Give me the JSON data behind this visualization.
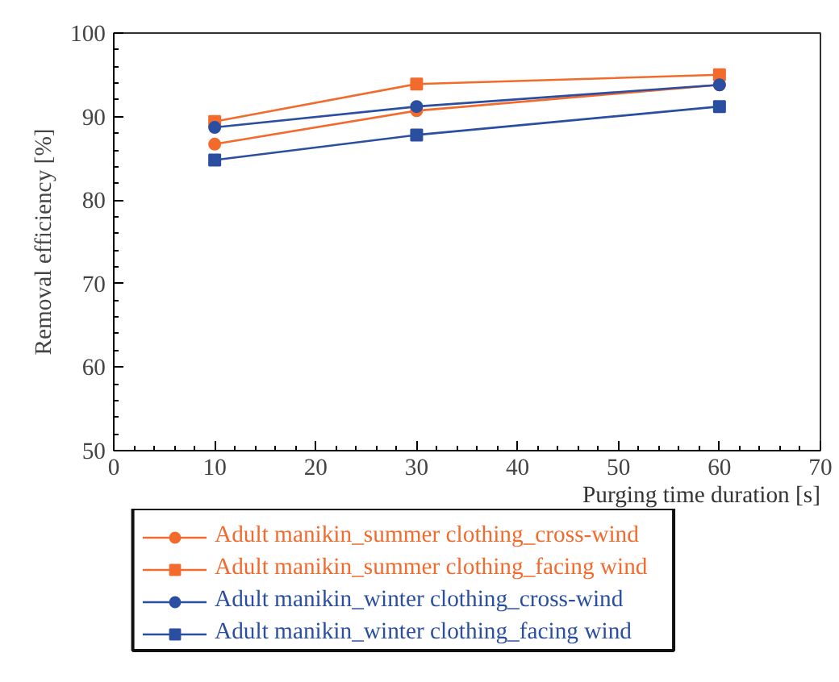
{
  "chart_data": {
    "type": "line",
    "xlabel": "Purging time duration [s]",
    "ylabel": "Removal efficiency [%]",
    "x": [
      10,
      30,
      60
    ],
    "xlim": [
      0,
      70
    ],
    "xticks": [
      0,
      10,
      20,
      30,
      40,
      50,
      60,
      70
    ],
    "ylim": [
      50,
      100
    ],
    "yticks": [
      50,
      60,
      70,
      80,
      90,
      100
    ],
    "grid": false,
    "legend": "bottom",
    "series": [
      {
        "name": "Adult manikin_summer clothing_cross-wind",
        "color": "#f26b2d",
        "marker": "circle",
        "values": [
          86.7,
          90.7,
          93.8
        ]
      },
      {
        "name": "Adult manikin_summer clothing_facing wind",
        "color": "#f26b2d",
        "marker": "square",
        "values": [
          89.4,
          93.9,
          95.0
        ]
      },
      {
        "name": "Adult manikin_winter clothing_cross-wind",
        "color": "#2a4ea0",
        "marker": "circle",
        "values": [
          88.7,
          91.2,
          93.8
        ]
      },
      {
        "name": "Adult manikin_winter clothing_facing wind",
        "color": "#2a4ea0",
        "marker": "square",
        "values": [
          84.8,
          87.8,
          91.2
        ]
      }
    ]
  }
}
